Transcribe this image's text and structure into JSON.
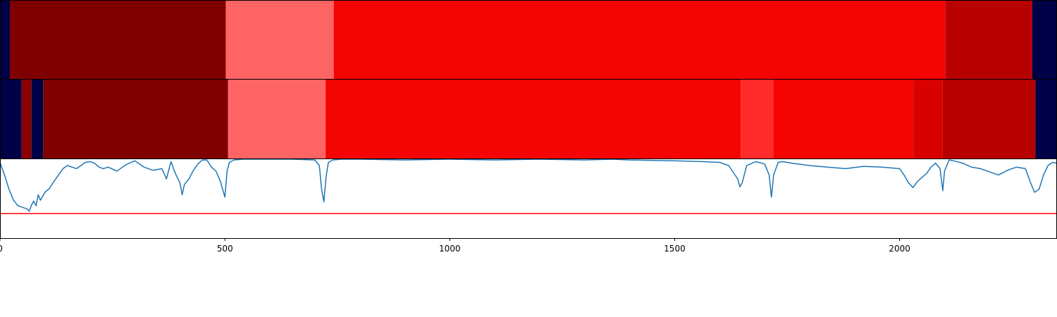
{
  "chart_data": [
    {
      "type": "heatmap",
      "xlim": [
        0,
        2350
      ],
      "colors": {
        "dark_blue": "#000047",
        "darkest_red": "#7f0000",
        "light_red": "#ff6464",
        "bright_red": "#f50404",
        "dark_red": "#b70000"
      },
      "segments": [
        {
          "x0": 0,
          "x1": 22,
          "color": "#000047"
        },
        {
          "x0": 22,
          "x1": 502,
          "color": "#7f0000"
        },
        {
          "x0": 502,
          "x1": 742,
          "color": "#ff6464"
        },
        {
          "x0": 742,
          "x1": 2102,
          "color": "#f50404"
        },
        {
          "x0": 2102,
          "x1": 2295,
          "color": "#b70000"
        },
        {
          "x0": 2295,
          "x1": 2350,
          "color": "#000047"
        }
      ]
    },
    {
      "type": "heatmap",
      "xlim": [
        0,
        2350
      ],
      "segments": [
        {
          "x0": 0,
          "x1": 48,
          "color": "#000047"
        },
        {
          "x0": 48,
          "x1": 70,
          "color": "#8b0000"
        },
        {
          "x0": 70,
          "x1": 96,
          "color": "#000047"
        },
        {
          "x0": 96,
          "x1": 507,
          "color": "#7f0000"
        },
        {
          "x0": 507,
          "x1": 724,
          "color": "#ff6464"
        },
        {
          "x0": 724,
          "x1": 1647,
          "color": "#f50404"
        },
        {
          "x0": 1647,
          "x1": 1719,
          "color": "#ff2b2b"
        },
        {
          "x0": 1719,
          "x1": 2031,
          "color": "#f50404"
        },
        {
          "x0": 2031,
          "x1": 2096,
          "color": "#d90000"
        },
        {
          "x0": 2096,
          "x1": 2302,
          "color": "#b70000"
        },
        {
          "x0": 2302,
          "x1": 2350,
          "color": "#000047"
        }
      ]
    },
    {
      "type": "line",
      "xlim": [
        0,
        2350
      ],
      "ylim": [
        0,
        1
      ],
      "x_ticks": [
        0,
        500,
        1000,
        1500,
        2000
      ],
      "x_tick_labels": [
        "0",
        "500",
        "1000",
        "1500",
        "2000"
      ],
      "threshold": {
        "y": 0.31,
        "color": "#ff0000"
      },
      "series": [
        {
          "color": "#1f77b4",
          "x": [
            0,
            10,
            20,
            30,
            40,
            50,
            60,
            65,
            70,
            75,
            80,
            85,
            90,
            95,
            100,
            110,
            120,
            130,
            140,
            150,
            160,
            170,
            180,
            190,
            200,
            210,
            220,
            230,
            240,
            260,
            280,
            300,
            320,
            340,
            360,
            370,
            380,
            390,
            400,
            405,
            410,
            420,
            430,
            440,
            450,
            460,
            470,
            480,
            490,
            500,
            505,
            510,
            520,
            540,
            560,
            600,
            650,
            700,
            710,
            715,
            720,
            725,
            730,
            740,
            760,
            800,
            900,
            1000,
            1100,
            1200,
            1300,
            1360,
            1400,
            1500,
            1560,
            1600,
            1620,
            1640,
            1645,
            1650,
            1660,
            1680,
            1700,
            1710,
            1715,
            1720,
            1730,
            1740,
            1760,
            1800,
            1840,
            1880,
            1920,
            1960,
            2000,
            2010,
            2020,
            2030,
            2040,
            2060,
            2070,
            2080,
            2090,
            2096,
            2100,
            2110,
            2120,
            2140,
            2160,
            2180,
            2200,
            2220,
            2240,
            2260,
            2280,
            2290,
            2300,
            2310,
            2320,
            2330,
            2340,
            2350
          ],
          "y": [
            0.96,
            0.8,
            0.62,
            0.48,
            0.41,
            0.39,
            0.37,
            0.34,
            0.42,
            0.47,
            0.41,
            0.55,
            0.48,
            0.53,
            0.58,
            0.63,
            0.72,
            0.8,
            0.88,
            0.92,
            0.9,
            0.88,
            0.92,
            0.96,
            0.97,
            0.95,
            0.9,
            0.88,
            0.9,
            0.85,
            0.93,
            0.98,
            0.9,
            0.86,
            0.88,
            0.75,
            0.97,
            0.82,
            0.7,
            0.55,
            0.68,
            0.75,
            0.86,
            0.94,
            0.99,
            0.99,
            0.9,
            0.85,
            0.72,
            0.52,
            0.85,
            0.96,
            0.99,
            1.0,
            1.0,
            1.0,
            1.0,
            0.99,
            0.92,
            0.62,
            0.46,
            0.78,
            0.96,
            0.99,
            1.0,
            1.0,
            0.99,
            1.0,
            0.99,
            1.0,
            0.99,
            1.0,
            0.99,
            0.98,
            0.97,
            0.96,
            0.92,
            0.75,
            0.65,
            0.7,
            0.92,
            0.97,
            0.94,
            0.8,
            0.52,
            0.8,
            0.96,
            0.97,
            0.95,
            0.92,
            0.9,
            0.88,
            0.91,
            0.9,
            0.88,
            0.8,
            0.7,
            0.64,
            0.72,
            0.82,
            0.9,
            0.95,
            0.88,
            0.6,
            0.85,
            0.99,
            0.98,
            0.95,
            0.9,
            0.88,
            0.84,
            0.8,
            0.86,
            0.9,
            0.88,
            0.72,
            0.58,
            0.62,
            0.8,
            0.92,
            0.96,
            0.95
          ]
        }
      ]
    }
  ]
}
